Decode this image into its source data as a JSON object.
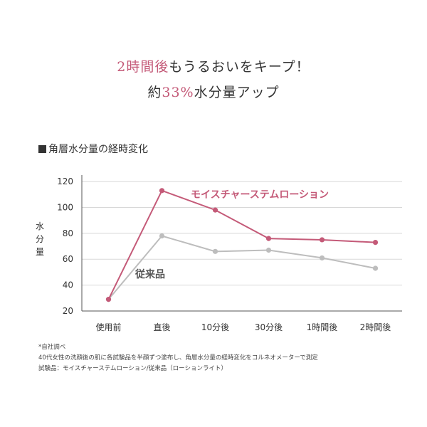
{
  "headline": {
    "line1_accent": "2時間後",
    "line1_rest": "もうるおいをキープ！",
    "line2_pre": "約",
    "line2_accent": "33%",
    "line2_post": "水分量アップ"
  },
  "section_title": "角層水分量の経時変化",
  "chart_data": {
    "type": "line",
    "categories": [
      "使用前",
      "直後",
      "10分後",
      "30分後",
      "1時間後",
      "2時間後"
    ],
    "ylabel": "水分量",
    "ylim": [
      20,
      125
    ],
    "yticks": [
      20,
      40,
      60,
      80,
      100,
      120
    ],
    "grid": true,
    "series": [
      {
        "name": "モイスチャーステムローション",
        "color": "#c45a78",
        "values": [
          29,
          113,
          98,
          76,
          75,
          73
        ]
      },
      {
        "name": "従来品",
        "color": "#bdbdbd",
        "values": [
          29,
          78,
          66,
          67,
          61,
          53
        ]
      }
    ]
  },
  "notes": [
    "*自社調べ",
    "40代女性の洗顔後の肌に各試験品を半顔ずつ塗布し、角層水分量の経時変化をコルネオメーターで測定",
    "試験品：モイスチャーステムローション/従来品（ローションライト）"
  ]
}
